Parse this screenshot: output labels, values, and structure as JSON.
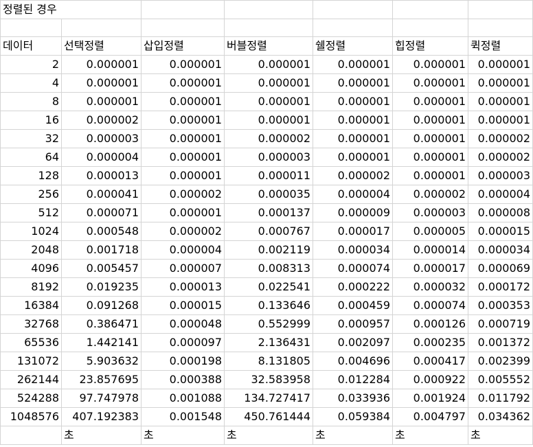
{
  "title": "정렬된 경우",
  "headers": [
    "데이터",
    "선택정렬",
    "삽입정렬",
    "버블정렬",
    "쉘정렬",
    "힙정렬",
    "퀵정렬"
  ],
  "rows": [
    [
      "2",
      "0.000001",
      "0.000001",
      "0.000001",
      "0.000001",
      "0.000001",
      "0.000001"
    ],
    [
      "4",
      "0.000001",
      "0.000001",
      "0.000001",
      "0.000001",
      "0.000001",
      "0.000001"
    ],
    [
      "8",
      "0.000001",
      "0.000001",
      "0.000001",
      "0.000001",
      "0.000001",
      "0.000001"
    ],
    [
      "16",
      "0.000002",
      "0.000001",
      "0.000001",
      "0.000001",
      "0.000001",
      "0.000001"
    ],
    [
      "32",
      "0.000003",
      "0.000001",
      "0.000002",
      "0.000001",
      "0.000001",
      "0.000002"
    ],
    [
      "64",
      "0.000004",
      "0.000001",
      "0.000003",
      "0.000001",
      "0.000001",
      "0.000002"
    ],
    [
      "128",
      "0.000013",
      "0.000001",
      "0.000011",
      "0.000002",
      "0.000001",
      "0.000003"
    ],
    [
      "256",
      "0.000041",
      "0.000002",
      "0.000035",
      "0.000004",
      "0.000002",
      "0.000004"
    ],
    [
      "512",
      "0.000071",
      "0.000001",
      "0.000137",
      "0.000009",
      "0.000003",
      "0.000008"
    ],
    [
      "1024",
      "0.000548",
      "0.000002",
      "0.000767",
      "0.000017",
      "0.000005",
      "0.000015"
    ],
    [
      "2048",
      "0.001718",
      "0.000004",
      "0.002119",
      "0.000034",
      "0.000014",
      "0.000034"
    ],
    [
      "4096",
      "0.005457",
      "0.000007",
      "0.008313",
      "0.000074",
      "0.000017",
      "0.000069"
    ],
    [
      "8192",
      "0.019235",
      "0.000013",
      "0.022541",
      "0.000222",
      "0.000032",
      "0.000172"
    ],
    [
      "16384",
      "0.091268",
      "0.000015",
      "0.133646",
      "0.000459",
      "0.000074",
      "0.000353"
    ],
    [
      "32768",
      "0.386471",
      "0.000048",
      "0.552999",
      "0.000957",
      "0.000126",
      "0.000719"
    ],
    [
      "65536",
      "1.442141",
      "0.000097",
      "2.136431",
      "0.002097",
      "0.000235",
      "0.001372"
    ],
    [
      "131072",
      "5.903632",
      "0.000198",
      "8.131805",
      "0.004696",
      "0.000417",
      "0.002399"
    ],
    [
      "262144",
      "23.857695",
      "0.000388",
      "32.583958",
      "0.012284",
      "0.000922",
      "0.005552"
    ],
    [
      "524288",
      "97.747978",
      "0.001088",
      "134.727417",
      "0.033936",
      "0.001924",
      "0.011792"
    ],
    [
      "1048576",
      "407.192383",
      "0.001548",
      "450.761444",
      "0.059384",
      "0.004797",
      "0.034362"
    ]
  ],
  "units": [
    "",
    "초",
    "초",
    "초",
    "초",
    "초",
    "초"
  ]
}
